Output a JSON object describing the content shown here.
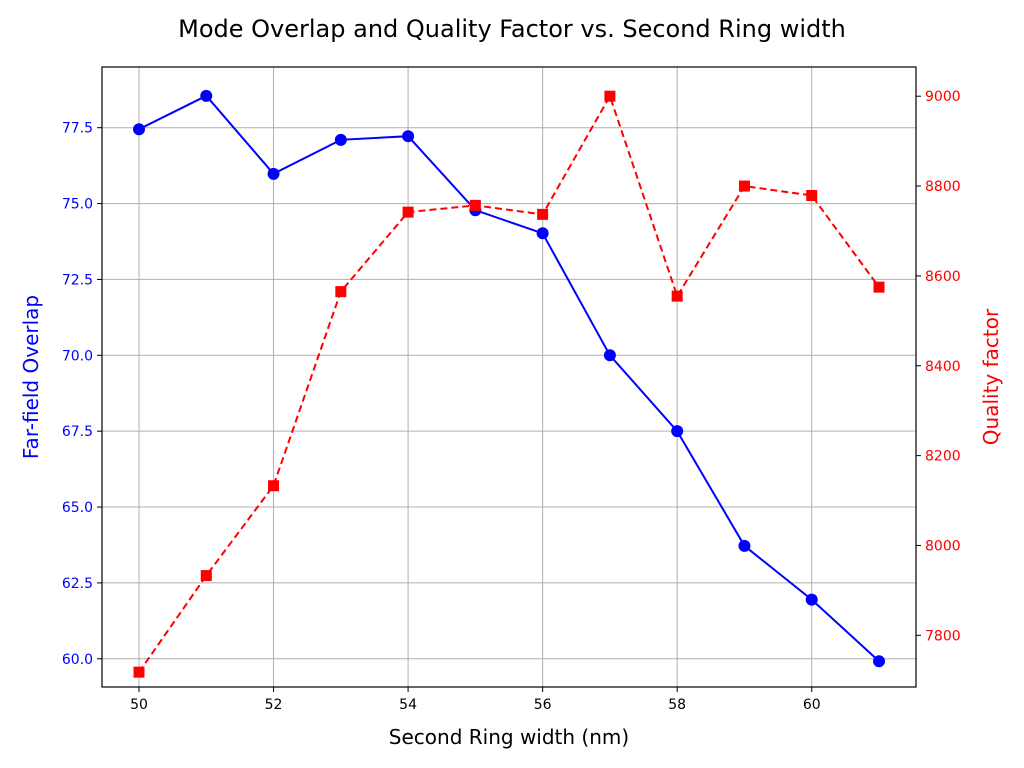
{
  "chart_data": {
    "type": "line",
    "title": "Mode Overlap and Quality Factor vs. Second Ring width",
    "xlabel": "Second Ring width (nm)",
    "ylabel_left": "Far-field Overlap",
    "ylabel_right": "Quality factor",
    "x": [
      50,
      51,
      52,
      53,
      54,
      55,
      56,
      57,
      58,
      59,
      60,
      61
    ],
    "xticks": [
      50,
      52,
      54,
      56,
      58,
      60
    ],
    "xlim": [
      49.45,
      61.55
    ],
    "ylim_left": [
      59.07,
      79.5
    ],
    "ylim_right": [
      7685,
      9065
    ],
    "yticks_left": [
      "60.0",
      "62.5",
      "65.0",
      "67.5",
      "70.0",
      "72.5",
      "75.0",
      "77.5"
    ],
    "yticks_right": [
      "7800",
      "8000",
      "8200",
      "8400",
      "8600",
      "8800",
      "9000"
    ],
    "grid": true,
    "series": [
      {
        "axis": "left",
        "color": "#0000ff",
        "line_style": "solid",
        "marker": "circle",
        "values": [
          77.45,
          78.55,
          75.98,
          77.1,
          77.22,
          74.78,
          74.02,
          70.0,
          67.5,
          63.72,
          61.95,
          59.92
        ]
      },
      {
        "axis": "right",
        "color": "#ff0000",
        "line_style": "dashed",
        "marker": "square",
        "values": [
          7718,
          7933,
          8133,
          8565,
          8742,
          8757,
          8737,
          9000,
          8555,
          8800,
          8779,
          8575
        ]
      }
    ]
  }
}
